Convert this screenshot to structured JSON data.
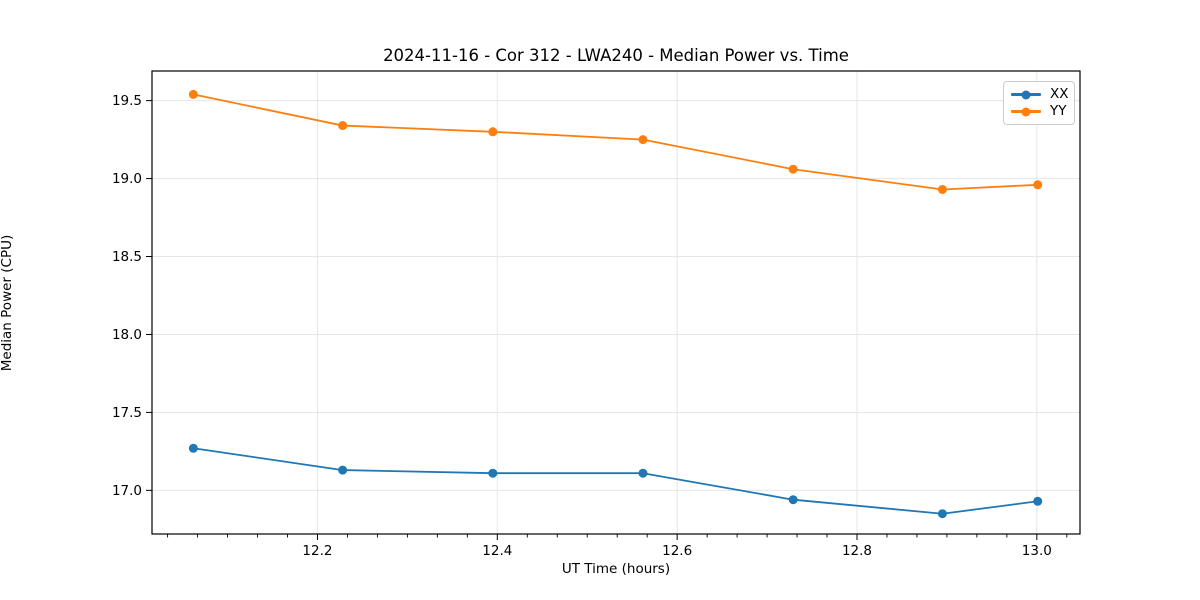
{
  "figure": {
    "title": "2024-11-16 - Cor 312 - LWA240 - Median Power vs. Time",
    "xlabel": "UT Time (hours)",
    "ylabel": "Median Power (CPU)"
  },
  "legend": {
    "position": "upper right",
    "items": [
      {
        "label": "XX",
        "color": "#1f77b4"
      },
      {
        "label": "YY",
        "color": "#ff7f0e"
      }
    ]
  },
  "colors": {
    "background": "#ffffff",
    "grid": "#e6e6e6",
    "spine": "#000000",
    "tick": "#000000",
    "series_xx": "#1f77b4",
    "series_yy": "#ff7f0e"
  },
  "chart_data": {
    "type": "line",
    "title": "2024-11-16 - Cor 312 - LWA240 - Median Power vs. Time",
    "xlabel": "UT Time (hours)",
    "ylabel": "Median Power (CPU)",
    "x": [
      12.062,
      12.228,
      12.395,
      12.562,
      12.729,
      12.895,
      13.001
    ],
    "series": [
      {
        "name": "XX",
        "color": "#1f77b4",
        "values": [
          17.27,
          17.13,
          17.11,
          17.11,
          16.94,
          16.85,
          16.93
        ]
      },
      {
        "name": "YY",
        "color": "#ff7f0e",
        "values": [
          19.54,
          19.34,
          19.3,
          19.25,
          19.06,
          18.93,
          18.96
        ]
      }
    ],
    "xlim": [
      12.016,
      13.048
    ],
    "ylim": [
      16.72,
      19.69
    ],
    "x_ticks": [
      12.2,
      12.4,
      12.6,
      12.8,
      13.0
    ],
    "y_ticks": [
      17.0,
      17.5,
      18.0,
      18.5,
      19.0,
      19.5
    ],
    "x_tick_labels": [
      "12.2",
      "12.4",
      "12.6",
      "12.8",
      "13.0"
    ],
    "y_tick_labels": [
      "17.0",
      "17.5",
      "18.0",
      "18.5",
      "19.0",
      "19.5"
    ],
    "x_minor_divisions": 6,
    "grid": true,
    "legend_position": "upper right",
    "marker": "circle",
    "marker_radius": 4.5,
    "line_width": 1.8
  }
}
